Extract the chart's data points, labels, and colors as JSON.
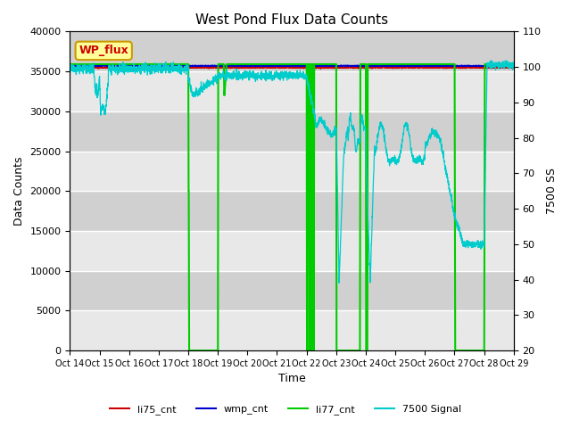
{
  "title": "West Pond Flux Data Counts",
  "xlabel": "Time",
  "ylabel_left": "Data Counts",
  "ylabel_right": "7500 SS",
  "xlim": [
    0,
    15
  ],
  "ylim_left": [
    0,
    40000
  ],
  "ylim_right": [
    20,
    110
  ],
  "xtick_labels": [
    "Oct 14",
    "Oct 15",
    "Oct 16",
    "Oct 17",
    "Oct 18",
    "Oct 19",
    "Oct 20",
    "Oct 21",
    "Oct 22",
    "Oct 23",
    "Oct 24",
    "Oct 25",
    "Oct 26",
    "Oct 27",
    "Oct 28",
    "Oct 29"
  ],
  "yticks_left": [
    0,
    5000,
    10000,
    15000,
    20000,
    25000,
    30000,
    35000,
    40000
  ],
  "yticks_right": [
    20,
    30,
    40,
    50,
    60,
    70,
    80,
    90,
    100,
    110
  ],
  "annotation_text": "WP_flux",
  "annotation_color": "#cc0000",
  "annotation_bg": "#ffff99",
  "annotation_border": "#cc9900",
  "bg_light": "#e8e8e8",
  "bg_dark": "#d0d0d0",
  "legend_entries": [
    "li75_cnt",
    "wmp_cnt",
    "li77_cnt",
    "7500 Signal"
  ],
  "legend_colors": [
    "#cc0000",
    "#0000cc",
    "#00cc00",
    "#00cccc"
  ],
  "line_colors": {
    "li75_cnt": "#cc0000",
    "wmp_cnt": "#0000cc",
    "li77_cnt": "#00cc00",
    "7500_signal": "#00cccc"
  }
}
